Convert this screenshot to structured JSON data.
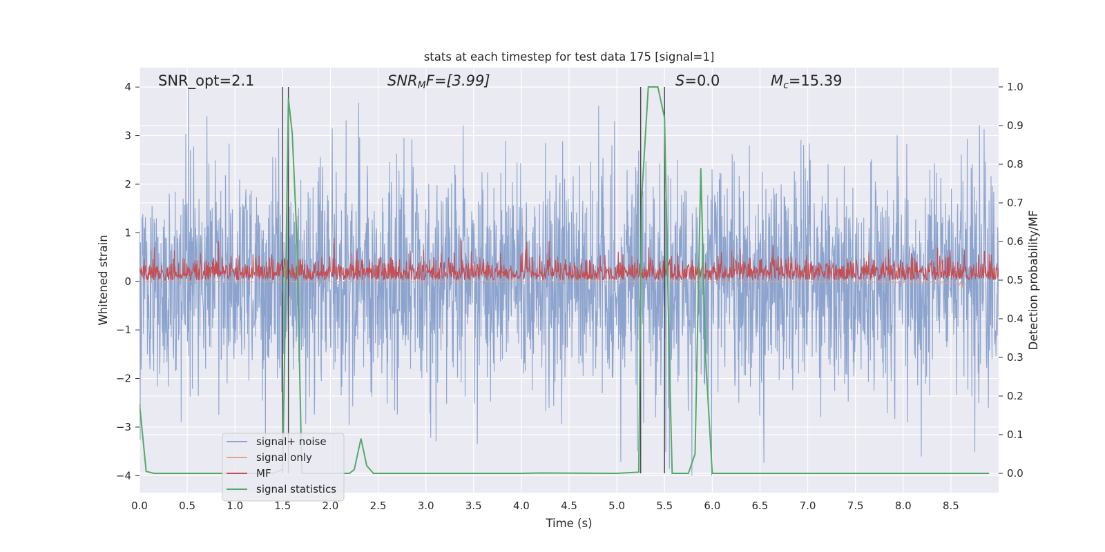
{
  "chart_data": {
    "type": "line",
    "title": "stats at each timestep for test data 175 [signal=1]",
    "xlabel": "Time (s)",
    "ylabel": "Whitened strain",
    "ylabel_right": "Detection probability/MF",
    "xlim": [
      0,
      9
    ],
    "ylim_left": [
      -4.35,
      4.4
    ],
    "ylim_right": [
      -0.05,
      1.05
    ],
    "xticks": [
      "0.0",
      "0.5",
      "1.0",
      "1.5",
      "2.0",
      "2.5",
      "3.0",
      "3.5",
      "4.0",
      "4.5",
      "5.0",
      "5.5",
      "6.0",
      "6.5",
      "7.0",
      "7.5",
      "8.0",
      "8.5"
    ],
    "yticks_left": [
      "4",
      "3",
      "2",
      "1",
      "0",
      "−1",
      "−2",
      "−3",
      "−4"
    ],
    "yticks_right": [
      "1.0",
      "0.9",
      "0.8",
      "0.7",
      "0.6",
      "0.5",
      "0.4",
      "0.3",
      "0.2",
      "0.1",
      "0.0"
    ],
    "grid": true,
    "legend_position": "lower-left",
    "annotations": {
      "snr_opt": "SNR_opt=2.1",
      "snr_mf_sym": "SNR",
      "snr_mf_sub": "M",
      "snr_mf_rest": "F=[3.99]",
      "s_sym": "S",
      "s_rest": "=0.0",
      "mc_sym": "M",
      "mc_sub": "c",
      "mc_rest": "=15.39"
    },
    "vlines_x": [
      1.5,
      1.56,
      5.25,
      5.5
    ],
    "series": [
      {
        "name": "signal+ noise",
        "color": "#8ca3cd",
        "axis": "left",
        "kind": "noise",
        "amplitude_range": [
          -4.0,
          4.0
        ]
      },
      {
        "name": "signal only",
        "color": "#e8a384",
        "axis": "left",
        "kind": "chirp",
        "x_end": 8.65,
        "min_y": -0.45
      },
      {
        "name": "MF",
        "color": "#c44e52",
        "axis": "right",
        "kind": "mf_noise",
        "baseline": 0.5,
        "typical_max": 0.6
      },
      {
        "name": "signal statistics",
        "color": "#55a868",
        "axis": "right",
        "x": [
          0.0,
          0.07,
          0.15,
          0.3,
          1.0,
          1.4,
          1.5,
          1.52,
          1.56,
          1.6,
          1.65,
          1.7,
          2.0,
          2.2,
          2.25,
          2.32,
          2.38,
          2.45,
          3.0,
          4.0,
          4.2,
          5.0,
          5.23,
          5.26,
          5.33,
          5.43,
          5.5,
          5.55,
          5.58,
          5.75,
          5.82,
          5.88,
          5.93,
          6.0,
          6.2,
          7.0,
          8.0,
          8.9
        ],
        "y": [
          0.18,
          0.005,
          0.0,
          0.0,
          0.0,
          0.0,
          0.01,
          0.3,
          0.97,
          0.88,
          0.6,
          0.0,
          0.0,
          0.0,
          0.01,
          0.09,
          0.02,
          0.0,
          0.0,
          0.0,
          0.001,
          0.0,
          0.003,
          0.71,
          1.0,
          1.0,
          0.92,
          0.3,
          0.0,
          0.0,
          0.05,
          0.79,
          0.3,
          0.0,
          0.0,
          0.0,
          0.0,
          0.0
        ]
      }
    ]
  },
  "colors": {
    "axes_bg": "#eaeaf2",
    "grid": "#ffffff",
    "noise": "#8ca3cd",
    "signal": "#e8a384",
    "mf": "#c44e52",
    "stat": "#55a868",
    "vline": "#444444"
  }
}
